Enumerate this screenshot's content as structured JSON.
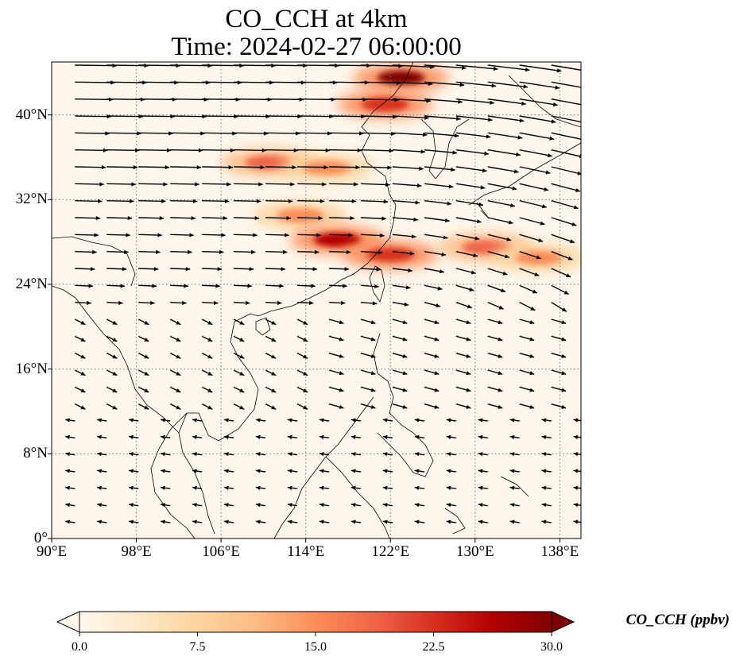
{
  "title": {
    "line1": "CO_CCH at 4km",
    "line2": "Time: 2024-02-27 06:00:00"
  },
  "map": {
    "type": "filled-contour-with-wind-vectors",
    "variable": "CO_CCH",
    "level": "4km",
    "time": "2024-02-27 06:00:00",
    "extent": {
      "lon": [
        90,
        140
      ],
      "lat": [
        0,
        45
      ]
    },
    "lat_ticks": [
      {
        "value": 0,
        "label": "0°"
      },
      {
        "value": 8,
        "label": "8°N"
      },
      {
        "value": 16,
        "label": "16°N"
      },
      {
        "value": 24,
        "label": "24°N"
      },
      {
        "value": 32,
        "label": "32°N"
      },
      {
        "value": 40,
        "label": "40°N"
      }
    ],
    "lon_ticks": [
      {
        "value": 90,
        "label": "90°E"
      },
      {
        "value": 98,
        "label": "98°E"
      },
      {
        "value": 106,
        "label": "106°E"
      },
      {
        "value": 114,
        "label": "114°E"
      },
      {
        "value": 122,
        "label": "122°E"
      },
      {
        "value": 130,
        "label": "130°E"
      },
      {
        "value": 138,
        "label": "138°E"
      }
    ],
    "gridlines": true,
    "plumes": [
      {
        "name": "north-china-plume",
        "lon": 123.0,
        "lat": 43.5,
        "value": 30
      },
      {
        "name": "north-china-plume-b",
        "lon": 121.5,
        "lat": 41.0,
        "value": 24
      },
      {
        "name": "sichuan-belt",
        "lon": 110.5,
        "lat": 35.5,
        "value": 20
      },
      {
        "name": "central-belt",
        "lon": 116.0,
        "lat": 35.0,
        "value": 14
      },
      {
        "name": "yangtze-belt",
        "lon": 113.5,
        "lat": 30.5,
        "value": 16
      },
      {
        "name": "east-china-sea-plume",
        "lon": 117.0,
        "lat": 28.2,
        "value": 27
      },
      {
        "name": "east-china-sea-plume-b",
        "lon": 122.0,
        "lat": 26.8,
        "value": 24
      },
      {
        "name": "pacific-outflow",
        "lon": 131.0,
        "lat": 27.5,
        "value": 18
      },
      {
        "name": "pacific-outflow-b",
        "lon": 136.0,
        "lat": 26.5,
        "value": 14
      }
    ]
  },
  "colorbar": {
    "label": "CO_CCH (ppbv)",
    "min": 0.0,
    "max": 30.0,
    "extend": "both",
    "colormap": "OrRd",
    "ticks": [
      "0.0",
      "7.5",
      "15.0",
      "22.5",
      "30.0"
    ],
    "colors": [
      "#fff7ec",
      "#fee8c8",
      "#fdd49e",
      "#fdbb84",
      "#fc8d59",
      "#ef6548",
      "#d7301f",
      "#b30000",
      "#7f0000"
    ]
  },
  "colors": {
    "background_field": "#fff7ec",
    "coastline": "#000000",
    "arrow": "#000000",
    "gridline": "#777777"
  }
}
